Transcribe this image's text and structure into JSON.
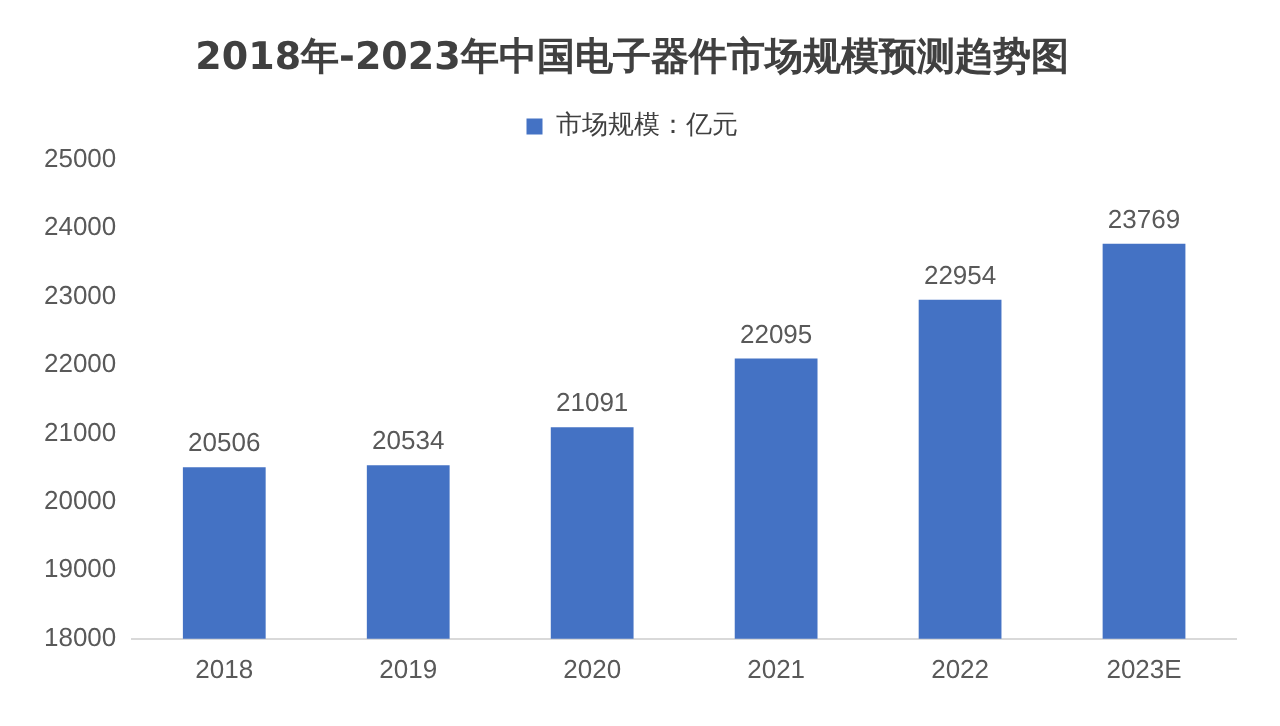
{
  "chart_data": {
    "type": "bar",
    "title": "2018年-2023年中国电子器件市场规模预测趋势图",
    "categories": [
      "2018",
      "2019",
      "2020",
      "2021",
      "2022",
      "2023E"
    ],
    "series": [
      {
        "name": "市场规模：亿元",
        "color": "#4472c4",
        "values": [
          20506,
          20534,
          21091,
          22095,
          22954,
          23769
        ]
      }
    ],
    "ylim": [
      18000,
      25000
    ],
    "yticks": [
      18000,
      19000,
      20000,
      21000,
      22000,
      23000,
      24000,
      25000
    ],
    "grid": false,
    "legend": "top",
    "data_labels": true
  }
}
